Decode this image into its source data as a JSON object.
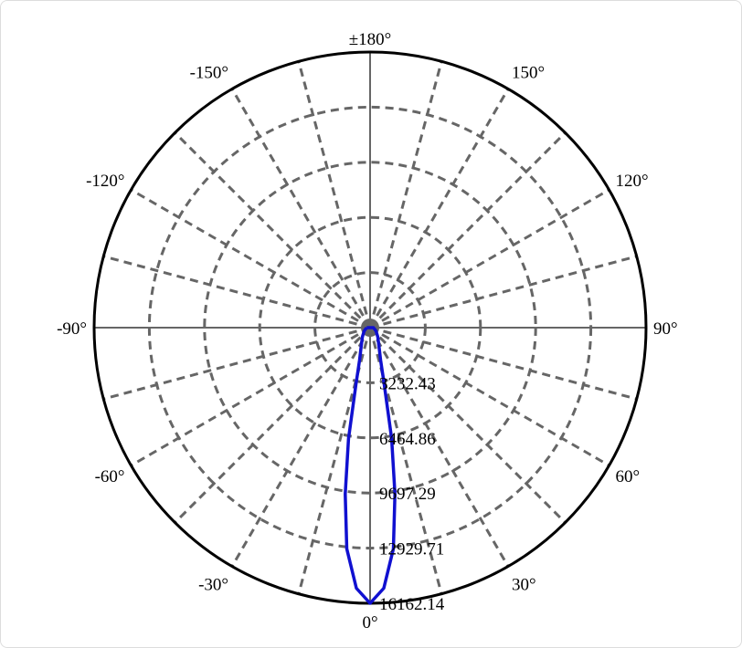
{
  "chart_data": {
    "type": "polar",
    "title": "",
    "angle_labels": [
      "0°",
      "30°",
      "60°",
      "90°",
      "120°",
      "150°",
      "±180°",
      "-150°",
      "-120°",
      "-90°",
      "-60°",
      "-30°"
    ],
    "angle_label_values": [
      0,
      30,
      60,
      90,
      120,
      150,
      180,
      -150,
      -120,
      -90,
      -60,
      -30
    ],
    "radial_ticks": [
      3232.43,
      6464.86,
      9697.29,
      12929.71,
      16162.14
    ],
    "radial_tick_labels": [
      "3232.43",
      "6464.86",
      "9697.29",
      "12929.71",
      "16162.14"
    ],
    "rmax": 16162.14,
    "spoke_step_deg": 15,
    "grid": true,
    "series": [
      {
        "color": "#1010d0",
        "angles": [
          0,
          3,
          6,
          8.5,
          11,
          14,
          18,
          25,
          40,
          60,
          90
        ],
        "values": [
          16162.14,
          15300,
          13040,
          9860,
          6630,
          3400,
          2000,
          1240,
          700,
          400,
          200
        ],
        "symmetric": true
      }
    ]
  }
}
